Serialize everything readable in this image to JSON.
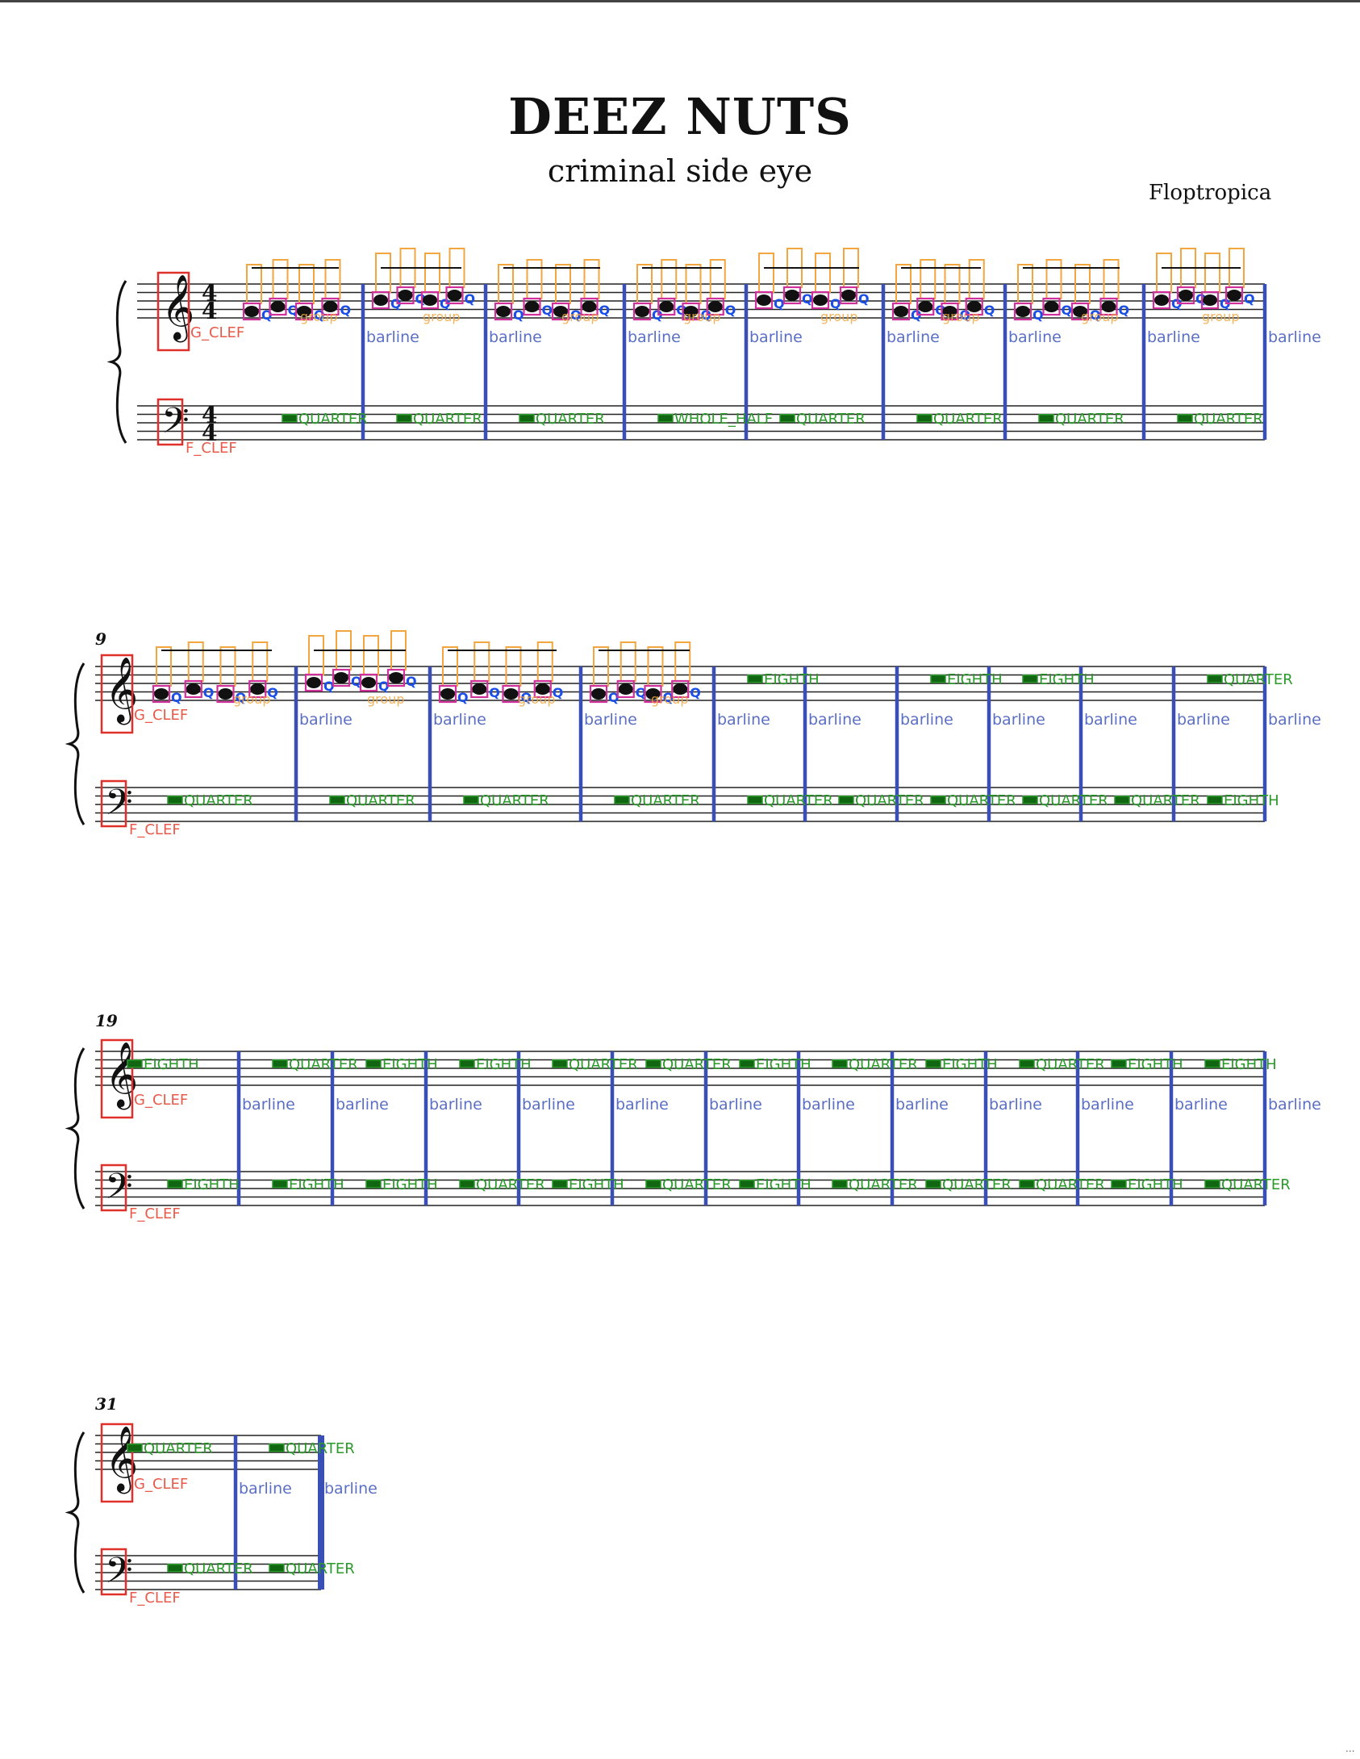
{
  "page": {
    "title": "DEEZ NUTS",
    "subtitle": "criminal side eye",
    "composer": "Floptropica",
    "corner_mark": "..."
  },
  "colors": {
    "staff": "#222222",
    "barline": "#3a4fb5",
    "barline_label": "#5a6fc5",
    "clef_box": "#e0302a",
    "clef_label": "#e85a4a",
    "beam_group": "#f2a640",
    "notehead_box": "#d0309a",
    "quarter_q": "#1a4ee8",
    "rest_label": "#2a9a2a",
    "rest_fill": "#116611"
  },
  "labels": {
    "barline": "barline",
    "g_clef": "G_CLEF",
    "f_clef": "F_CLEF",
    "group": "group",
    "quarter": "QUARTER",
    "eighth": "EIGHTH",
    "whole_half": "WHOLE_HALF",
    "q": "Q"
  },
  "systems": [
    {
      "measure_number": "",
      "time_signature": "4/4",
      "treble": [
        "beamed",
        "beamed",
        "beamed",
        "beamed",
        "beamed",
        "beamed",
        "beamed",
        "beamed"
      ],
      "bass": [
        "QUARTER",
        "QUARTER",
        "QUARTER",
        "WHOLE_HALF",
        "QUARTER",
        "QUARTER",
        "QUARTER",
        "QUARTER"
      ]
    },
    {
      "measure_number": "9",
      "time_signature": "",
      "treble": [
        "beamed",
        "beamed",
        "beamed",
        "beamed",
        "EIGHTH",
        "",
        "EIGHTH",
        "EIGHTH",
        "",
        "QUARTER"
      ],
      "bass": [
        "QUARTER",
        "QUARTER",
        "QUARTER",
        "QUARTER",
        "QUARTER",
        "QUARTER",
        "QUARTER",
        "QUARTER",
        "QUARTER",
        "EIGHTH"
      ]
    },
    {
      "measure_number": "19",
      "time_signature": "",
      "treble": [
        "EIGHTH",
        "QUARTER",
        "EIGHTH",
        "EIGHTH",
        "QUARTER",
        "QUARTER",
        "EIGHTH",
        "QUARTER",
        "EIGHTH",
        "QUARTER",
        "EIGHTH",
        "EIGHTH"
      ],
      "bass": [
        "EIGHTH",
        "EIGHTH",
        "EIGHTH",
        "QUARTER",
        "EIGHTH",
        "QUARTER",
        "EIGHTH",
        "QUARTER",
        "QUARTER",
        "QUARTER",
        "EIGHTH",
        "QUARTER"
      ]
    },
    {
      "measure_number": "31",
      "time_signature": "",
      "treble": [
        "QUARTER",
        "QUARTER"
      ],
      "bass": [
        "QUARTER",
        "QUARTER"
      ]
    }
  ]
}
